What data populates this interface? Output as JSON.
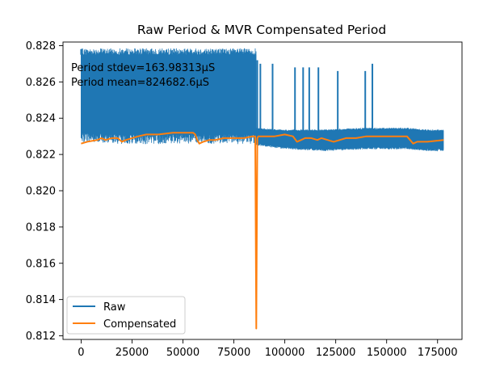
{
  "chart_data": {
    "type": "line",
    "title": "Raw Period & MVR Compensated Period",
    "xlabel": "",
    "ylabel": "",
    "xlim": [
      -8900,
      187000
    ],
    "ylim": [
      0.8118,
      0.8282
    ],
    "x_ticks": [
      0,
      25000,
      50000,
      75000,
      100000,
      125000,
      150000,
      175000
    ],
    "x_tick_labels": [
      "0",
      "25000",
      "50000",
      "75000",
      "100000",
      "125000",
      "150000",
      "175000"
    ],
    "y_ticks": [
      0.812,
      0.814,
      0.816,
      0.818,
      0.82,
      0.822,
      0.824,
      0.826,
      0.828
    ],
    "y_tick_labels": [
      "0.812",
      "0.814",
      "0.816",
      "0.818",
      "0.820",
      "0.822",
      "0.824",
      "0.826",
      "0.828"
    ],
    "annotations": [
      "Period stdev=163.98313µS",
      "Period mean=824682.6µS"
    ],
    "legend": {
      "placement": "lower-left",
      "entries": [
        "Raw",
        "Compensated"
      ]
    },
    "grid": false,
    "colors": {
      "raw": "#1f77b4",
      "compensated": "#ff7f0e"
    },
    "series": [
      {
        "name": "Raw",
        "band": {
          "x": [
            0,
            20000,
            40000,
            55000,
            70000,
            86000,
            86001,
            100000,
            120000,
            140000,
            160000,
            170000,
            178000
          ],
          "low": [
            0.8232,
            0.8231,
            0.8231,
            0.8231,
            0.8231,
            0.8231,
            0.8226,
            0.8224,
            0.8223,
            0.8224,
            0.8224,
            0.8223,
            0.8223
          ],
          "high": [
            0.8275,
            0.8275,
            0.8275,
            0.8275,
            0.8275,
            0.8275,
            0.8234,
            0.8233,
            0.8233,
            0.8234,
            0.8234,
            0.8233,
            0.8233
          ]
        },
        "spikes": [
          {
            "x": 0,
            "y": 0.8278
          },
          {
            "x": 86500,
            "y": 0.8272
          },
          {
            "x": 88000,
            "y": 0.827
          },
          {
            "x": 94000,
            "y": 0.827
          },
          {
            "x": 105000,
            "y": 0.8268
          },
          {
            "x": 109000,
            "y": 0.8268
          },
          {
            "x": 112000,
            "y": 0.8268
          },
          {
            "x": 116500,
            "y": 0.8268
          },
          {
            "x": 126000,
            "y": 0.8266
          },
          {
            "x": 139500,
            "y": 0.8266
          },
          {
            "x": 143000,
            "y": 0.827
          }
        ]
      },
      {
        "name": "Compensated",
        "x": [
          0,
          3000,
          8000,
          10000,
          12000,
          15000,
          18000,
          20000,
          22000,
          25000,
          28000,
          32000,
          38000,
          45000,
          50000,
          55000,
          56000,
          57000,
          58000,
          60000,
          63000,
          66000,
          70000,
          75000,
          80000,
          84000,
          85500,
          86000,
          86500,
          87000,
          90000,
          95000,
          100000,
          104000,
          106000,
          108000,
          110000,
          113000,
          116000,
          118000,
          121000,
          124000,
          127000,
          130000,
          135000,
          140000,
          145000,
          150000,
          155000,
          160000,
          161500,
          163000,
          165000,
          170000,
          178000
        ],
        "y": [
          0.8226,
          0.8227,
          0.8228,
          0.8229,
          0.8228,
          0.8229,
          0.8229,
          0.8227,
          0.8228,
          0.8229,
          0.823,
          0.8231,
          0.8231,
          0.8232,
          0.8232,
          0.8232,
          0.8231,
          0.8228,
          0.8226,
          0.8227,
          0.8228,
          0.8228,
          0.8229,
          0.8229,
          0.8229,
          0.823,
          0.823,
          0.8124,
          0.8229,
          0.823,
          0.823,
          0.823,
          0.8231,
          0.823,
          0.8227,
          0.8228,
          0.8229,
          0.8229,
          0.8228,
          0.8229,
          0.8228,
          0.8227,
          0.8228,
          0.8229,
          0.8229,
          0.823,
          0.823,
          0.823,
          0.823,
          0.823,
          0.8228,
          0.8226,
          0.8227,
          0.8227,
          0.8228
        ]
      }
    ]
  }
}
